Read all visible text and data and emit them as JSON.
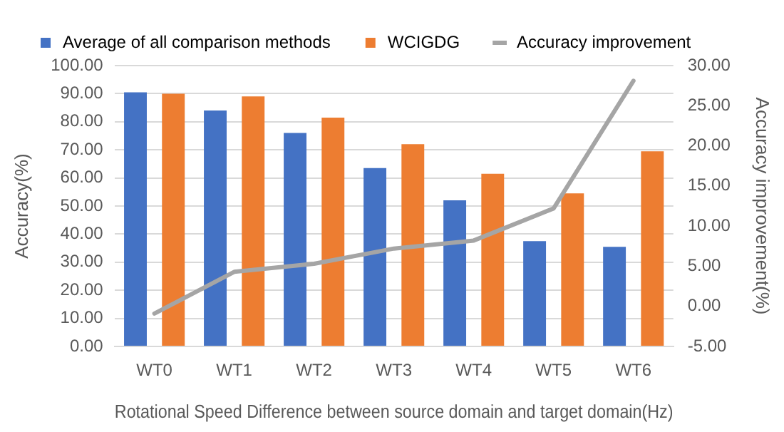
{
  "chart_data": {
    "type": "bar",
    "categories": [
      "WT0",
      "WT1",
      "WT2",
      "WT3",
      "WT4",
      "WT5",
      "WT6"
    ],
    "xlabel": "Rotational Speed Difference between source domain and target domain(Hz)",
    "ylabel": "Accuracy(%)",
    "y2label": "Accuracy improvement(%)",
    "series": [
      {
        "name": "Average of all comparison methods",
        "color": "#4472c4",
        "values": [
          90.5,
          84,
          76,
          63.5,
          52,
          37.5,
          35.5
        ]
      },
      {
        "name": "WCIGDG",
        "color": "#ed7d31",
        "values": [
          90,
          89,
          81.5,
          72,
          61.5,
          54.5,
          69.5
        ]
      },
      {
        "name": "Accuracy improvement",
        "type": "line",
        "axis": "y2",
        "color": "#a5a5a5",
        "marker": "none",
        "values": [
          -0.9,
          4.3,
          5.3,
          7.2,
          8.2,
          12.2,
          28.1
        ]
      }
    ],
    "ylim": [
      0,
      100
    ],
    "yticks": [
      {
        "value": 0,
        "label": "0.00"
      },
      {
        "value": 10,
        "label": "10.00"
      },
      {
        "value": 20,
        "label": "20.00"
      },
      {
        "value": 30,
        "label": "30.00"
      },
      {
        "value": 40,
        "label": "40.00"
      },
      {
        "value": 50,
        "label": "50.00"
      },
      {
        "value": 60,
        "label": "60.00"
      },
      {
        "value": 70,
        "label": "70.00"
      },
      {
        "value": 80,
        "label": "80.00"
      },
      {
        "value": 90,
        "label": "90.00"
      },
      {
        "value": 100,
        "label": "100.00"
      }
    ],
    "y2lim": [
      -5,
      30
    ],
    "y2ticks": [
      {
        "value": -5,
        "label": "-5.00"
      },
      {
        "value": 0,
        "label": "0.00"
      },
      {
        "value": 5,
        "label": "5.00"
      },
      {
        "value": 10,
        "label": "10.00"
      },
      {
        "value": 15,
        "label": "15.00"
      },
      {
        "value": 20,
        "label": "20.00"
      },
      {
        "value": 25,
        "label": "25.00"
      },
      {
        "value": 30,
        "label": "30.00"
      }
    ],
    "grid": "y",
    "legend": "top"
  }
}
